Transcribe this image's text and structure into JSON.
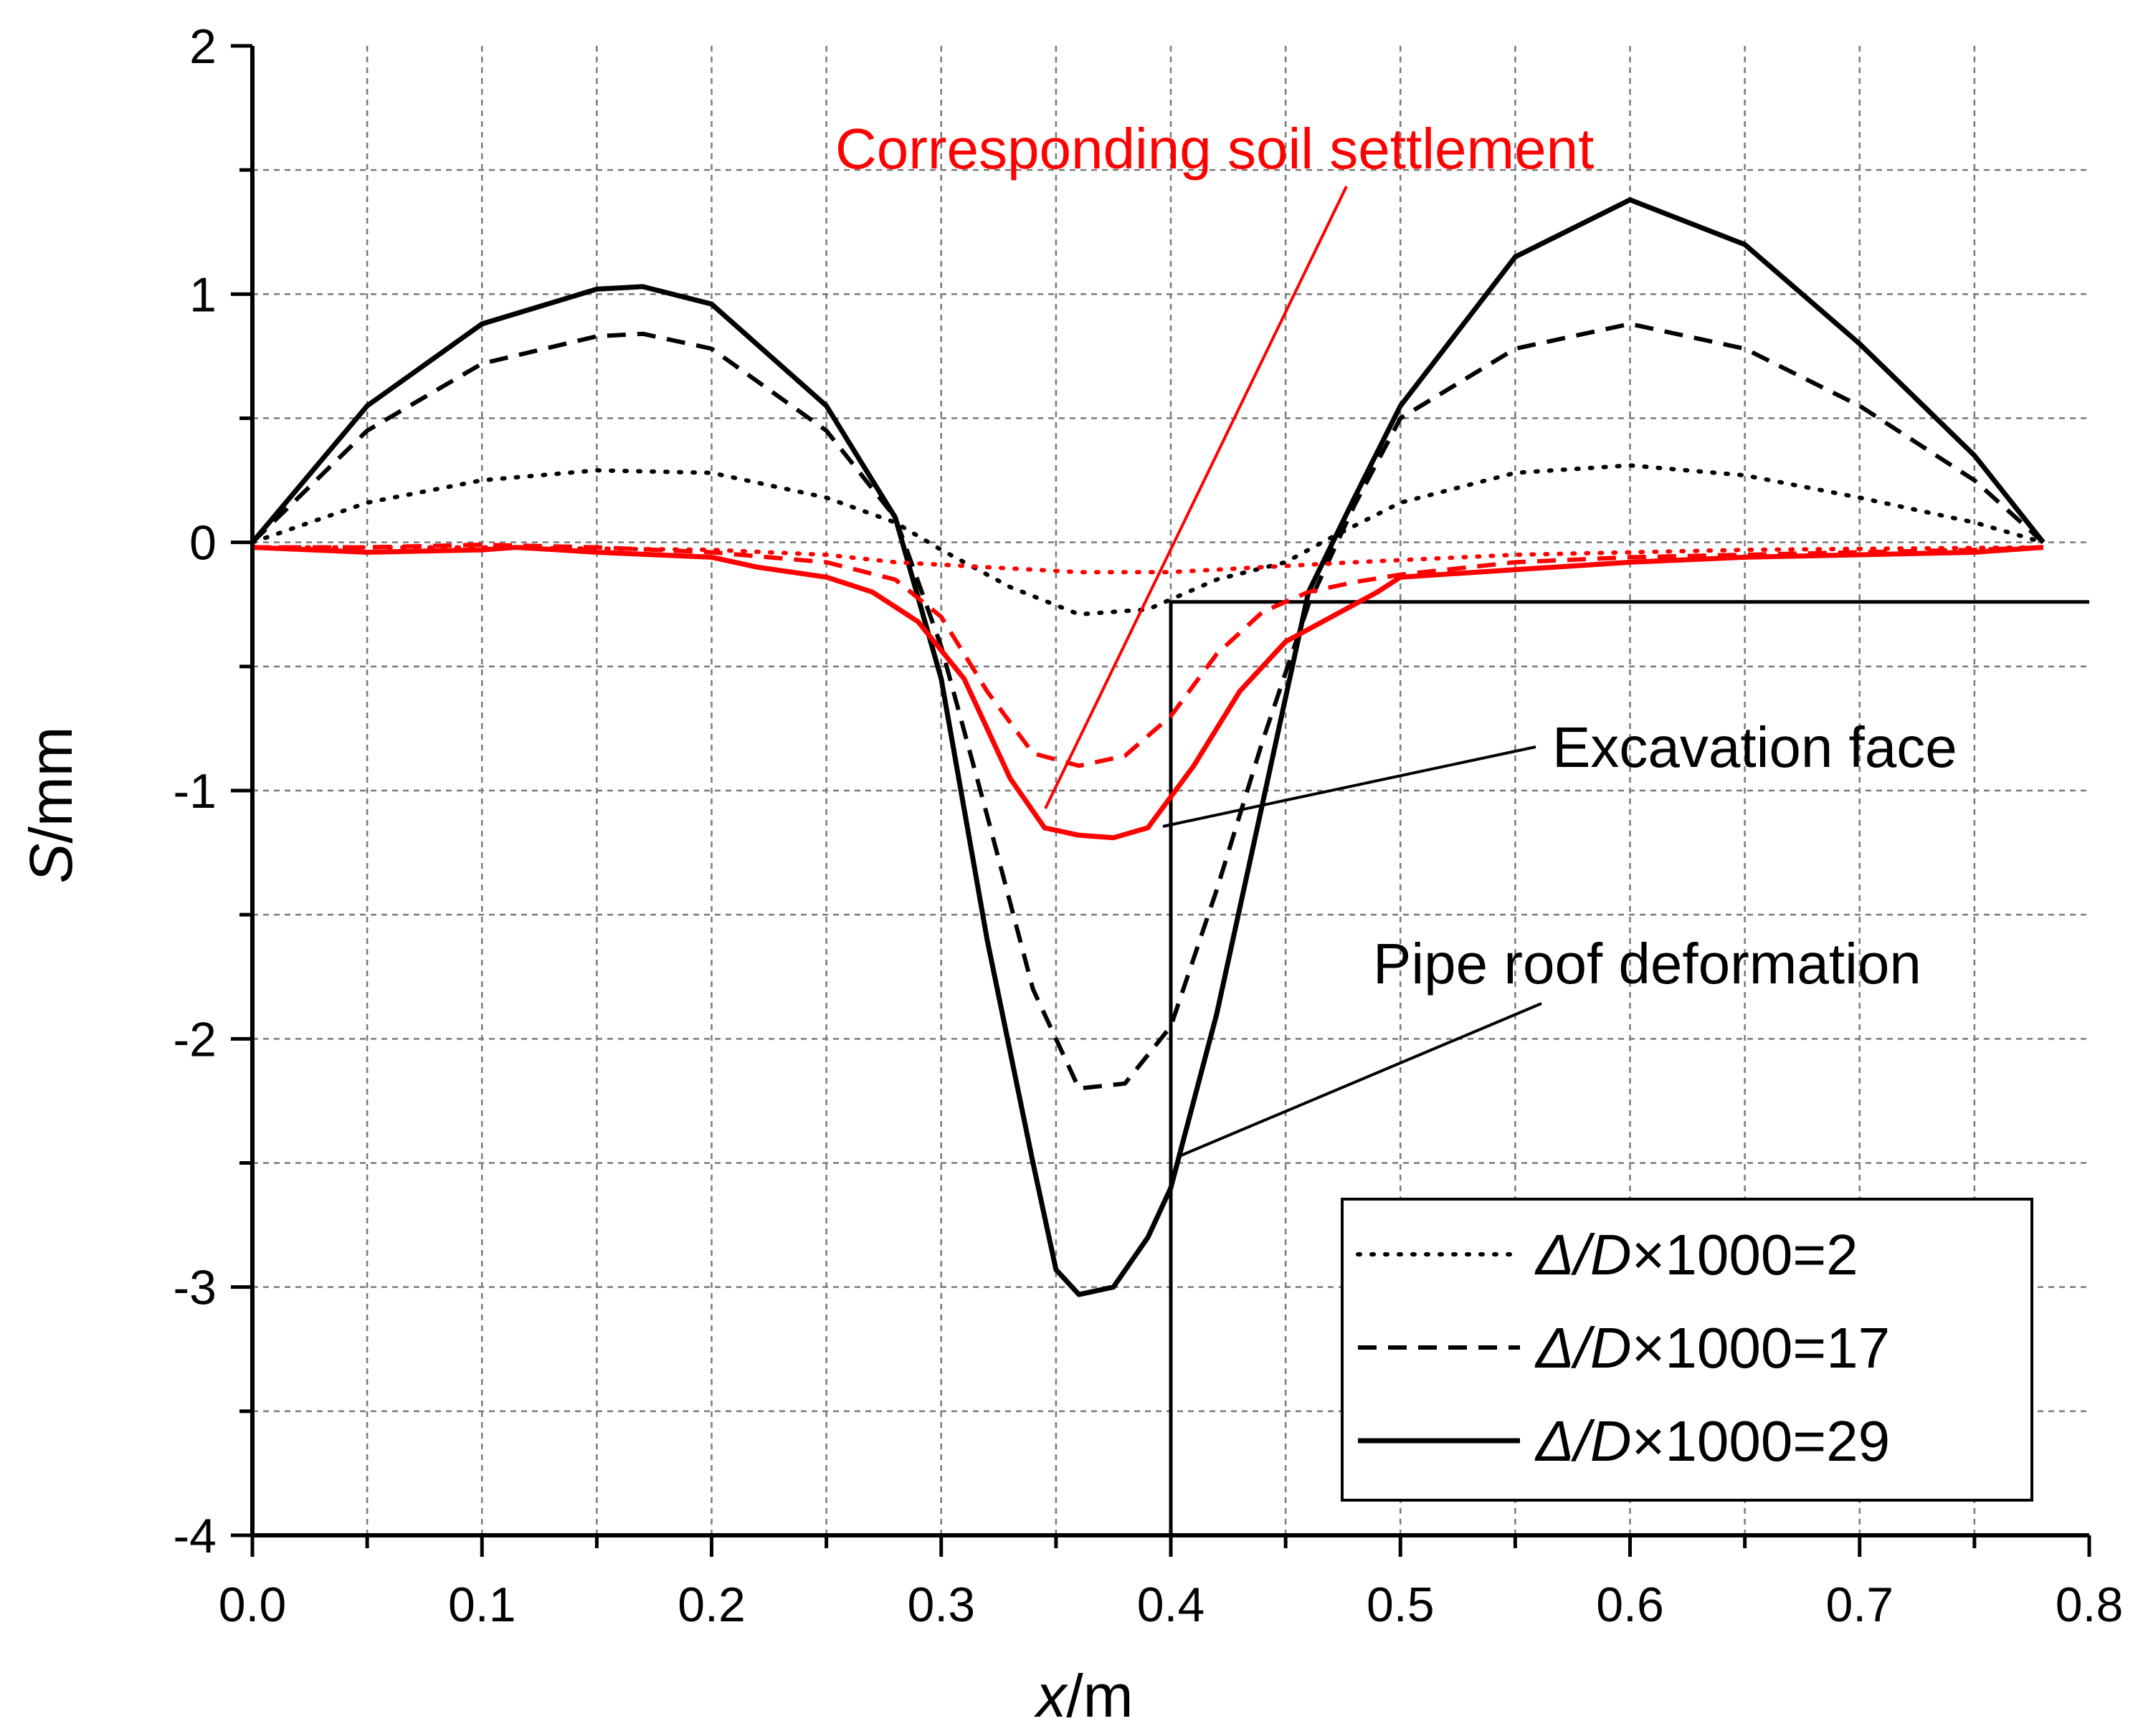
{
  "chart_data": {
    "type": "line",
    "title": "",
    "xlabel": {
      "italic": "x",
      "rest": "/m"
    },
    "ylabel": {
      "italic": "S",
      "rest": "/mm"
    },
    "xlim": [
      0.0,
      0.8
    ],
    "ylim": [
      -4,
      2
    ],
    "x_ticks": [
      0.0,
      0.1,
      0.2,
      0.3,
      0.4,
      0.5,
      0.6,
      0.7,
      0.8
    ],
    "x_tick_labels": [
      "0.0",
      "0.1",
      "0.2",
      "0.3",
      "0.4",
      "0.5",
      "0.6",
      "0.7",
      "0.8"
    ],
    "x_minor_ticks": [
      0.05,
      0.15,
      0.25,
      0.35,
      0.45,
      0.55,
      0.65,
      0.75
    ],
    "y_ticks": [
      2,
      1,
      0,
      -1,
      -2,
      -3,
      -4
    ],
    "y_tick_labels": [
      "2",
      "1",
      "0",
      "-1",
      "-2",
      "-3",
      "-4"
    ],
    "y_minor_ticks": [
      1.5,
      0.5,
      -0.5,
      -1.5,
      -2.5,
      -3.5
    ],
    "grid": true,
    "legend_position": "bottom-right",
    "colors": {
      "pipe": "#000000",
      "soil": "#ff0000"
    },
    "series": [
      {
        "name": "pipe-2",
        "style": "dotted",
        "color": "#000000",
        "legend_prefix": "Δ/D",
        "legend_suffix": "×1000=2",
        "x": [
          0,
          0.05,
          0.1,
          0.15,
          0.2,
          0.25,
          0.28,
          0.3,
          0.33,
          0.36,
          0.39,
          0.42,
          0.45,
          0.47,
          0.5,
          0.55,
          0.6,
          0.65,
          0.7,
          0.75,
          0.78
        ],
        "y": [
          0,
          0.16,
          0.25,
          0.29,
          0.28,
          0.18,
          0.08,
          -0.03,
          -0.18,
          -0.29,
          -0.27,
          -0.15,
          -0.08,
          0.02,
          0.16,
          0.28,
          0.31,
          0.27,
          0.18,
          0.08,
          0
        ]
      },
      {
        "name": "pipe-17",
        "style": "dashed",
        "color": "#000000",
        "legend_prefix": "Δ/D",
        "legend_suffix": "×1000=17",
        "x": [
          0,
          0.05,
          0.1,
          0.15,
          0.17,
          0.2,
          0.25,
          0.28,
          0.3,
          0.32,
          0.34,
          0.36,
          0.38,
          0.4,
          0.42,
          0.44,
          0.46,
          0.48,
          0.5,
          0.55,
          0.6,
          0.65,
          0.7,
          0.75,
          0.78
        ],
        "y": [
          0,
          0.45,
          0.72,
          0.83,
          0.84,
          0.78,
          0.45,
          0.1,
          -0.42,
          -1.1,
          -1.8,
          -2.2,
          -2.18,
          -1.95,
          -1.4,
          -0.8,
          -0.25,
          0.15,
          0.5,
          0.78,
          0.88,
          0.78,
          0.55,
          0.25,
          0
        ]
      },
      {
        "name": "pipe-29",
        "style": "solid",
        "color": "#000000",
        "legend_prefix": "Δ/D",
        "legend_suffix": "×1000=29",
        "x": [
          0,
          0.05,
          0.1,
          0.15,
          0.17,
          0.2,
          0.25,
          0.28,
          0.3,
          0.32,
          0.34,
          0.35,
          0.36,
          0.375,
          0.39,
          0.4,
          0.42,
          0.44,
          0.46,
          0.48,
          0.5,
          0.55,
          0.6,
          0.65,
          0.7,
          0.75,
          0.78
        ],
        "y": [
          0,
          0.55,
          0.88,
          1.02,
          1.03,
          0.96,
          0.55,
          0.1,
          -0.55,
          -1.6,
          -2.5,
          -2.93,
          -3.03,
          -3.0,
          -2.8,
          -2.6,
          -1.9,
          -1.05,
          -0.2,
          0.18,
          0.55,
          1.15,
          1.38,
          1.2,
          0.8,
          0.35,
          0
        ]
      },
      {
        "name": "soil-17",
        "style": "dashed",
        "color": "#ff0000",
        "x": [
          0,
          0.05,
          0.1,
          0.15,
          0.2,
          0.25,
          0.28,
          0.3,
          0.32,
          0.34,
          0.36,
          0.38,
          0.4,
          0.42,
          0.44,
          0.46,
          0.48,
          0.5,
          0.55,
          0.6,
          0.65,
          0.7,
          0.75,
          0.78
        ],
        "y": [
          -0.02,
          -0.02,
          -0.01,
          -0.02,
          -0.04,
          -0.08,
          -0.15,
          -0.3,
          -0.6,
          -0.85,
          -0.9,
          -0.86,
          -0.7,
          -0.45,
          -0.28,
          -0.2,
          -0.16,
          -0.13,
          -0.08,
          -0.06,
          -0.05,
          -0.04,
          -0.03,
          -0.02
        ]
      },
      {
        "name": "soil-29",
        "style": "solid",
        "color": "#ff0000",
        "x": [
          0,
          0.05,
          0.1,
          0.115,
          0.15,
          0.2,
          0.22,
          0.25,
          0.27,
          0.29,
          0.31,
          0.33,
          0.345,
          0.36,
          0.375,
          0.39,
          0.41,
          0.43,
          0.45,
          0.47,
          0.49,
          0.5,
          0.55,
          0.6,
          0.65,
          0.7,
          0.75,
          0.78
        ],
        "y": [
          -0.02,
          -0.04,
          -0.03,
          -0.02,
          -0.04,
          -0.06,
          -0.1,
          -0.14,
          -0.2,
          -0.32,
          -0.55,
          -0.95,
          -1.15,
          -1.18,
          -1.19,
          -1.15,
          -0.9,
          -0.6,
          -0.4,
          -0.3,
          -0.2,
          -0.14,
          -0.11,
          -0.08,
          -0.06,
          -0.05,
          -0.04,
          -0.02
        ]
      },
      {
        "name": "soil-2",
        "style": "dotted",
        "color": "#ff0000",
        "x": [
          0,
          0.1,
          0.2,
          0.25,
          0.28,
          0.32,
          0.36,
          0.4,
          0.44,
          0.48,
          0.55,
          0.65,
          0.78
        ],
        "y": [
          -0.02,
          -0.02,
          -0.03,
          -0.05,
          -0.08,
          -0.1,
          -0.12,
          -0.12,
          -0.1,
          -0.08,
          -0.05,
          -0.03,
          -0.02
        ]
      }
    ],
    "annotations": {
      "soil_label": "Corresponding soil settlement",
      "excavation_label": "Excavation face",
      "pipe_label": "Pipe roof deformation"
    },
    "excavation_face": {
      "x": 0.4,
      "y_top": -0.24,
      "x_end": 0.8
    }
  }
}
